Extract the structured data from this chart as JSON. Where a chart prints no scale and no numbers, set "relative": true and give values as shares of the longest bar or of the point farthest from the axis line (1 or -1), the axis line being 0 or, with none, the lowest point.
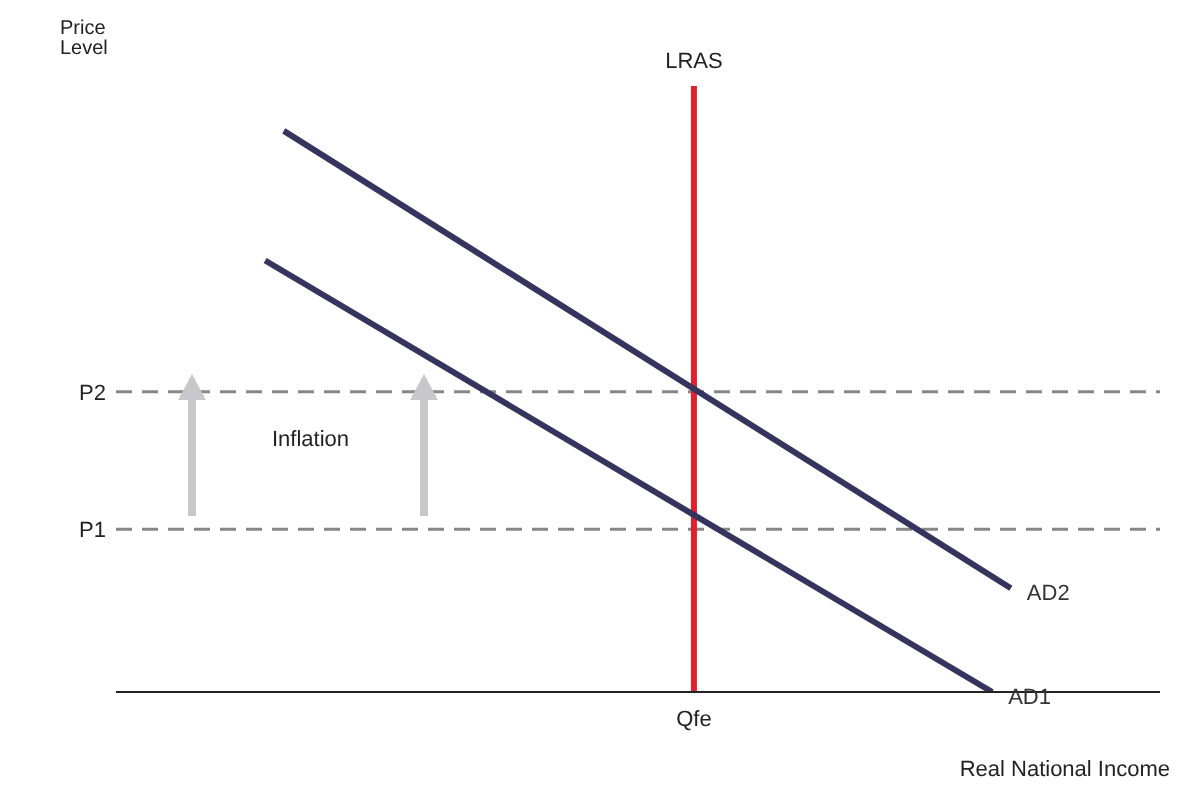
{
  "chart_data": {
    "type": "line",
    "relative": true,
    "ylabel": "Price Level",
    "xlabel": "Real National Income",
    "categories": [
      null,
      null,
      null,
      null,
      null,
      null,
      null,
      null,
      null,
      null,
      null,
      null,
      null,
      null,
      null,
      null,
      null,
      null,
      null,
      null,
      null,
      null,
      null,
      null,
      null,
      null,
      null,
      null,
      null,
      null,
      null,
      null,
      null,
      null,
      null,
      null,
      null,
      null,
      null,
      null,
      null,
      null,
      null,
      null,
      null,
      null,
      null,
      null,
      null,
      null,
      null,
      null,
      null,
      null,
      null,
      null,
      null
    ],
    "series": [
      {
        "name": "AD2",
        "color": "#34345f",
        "values": [
          null,
          null,
          null,
          null,
          null,
          null,
          null,
          null,
          null,
          1.0,
          null,
          null,
          null,
          null,
          null,
          null,
          null,
          null,
          null,
          null,
          null,
          null,
          null,
          null,
          null,
          null,
          null,
          null,
          null,
          null,
          null,
          null,
          null,
          null,
          null,
          null,
          null,
          null,
          null,
          null,
          null,
          null,
          null,
          null,
          null,
          null,
          null,
          null,
          0.185,
          null,
          null,
          null,
          null,
          null,
          null,
          null,
          null
        ]
      },
      {
        "name": "AD1",
        "color": "#34345f",
        "values": [
          null,
          null,
          null,
          null,
          null,
          null,
          null,
          null,
          0.769,
          null,
          null,
          null,
          null,
          null,
          null,
          null,
          null,
          null,
          null,
          null,
          null,
          null,
          null,
          null,
          null,
          null,
          null,
          null,
          null,
          null,
          null,
          null,
          null,
          null,
          null,
          null,
          null,
          null,
          null,
          null,
          null,
          null,
          null,
          null,
          null,
          null,
          null,
          0.0,
          null,
          null,
          null,
          null,
          null,
          null,
          null,
          null,
          null
        ]
      }
    ],
    "ref_lines": [
      {
        "axis": "y",
        "value": 0.535,
        "label": "P2",
        "color": "#888888",
        "line_style": "dashed"
      },
      {
        "axis": "y",
        "value": 0.29,
        "label": "P1",
        "color": "#888888",
        "line_style": "dashed"
      }
    ],
    "annotations": [
      "LRAS",
      "Inflation",
      "Qfe"
    ],
    "marker": "none",
    "line_style": "solid"
  }
}
